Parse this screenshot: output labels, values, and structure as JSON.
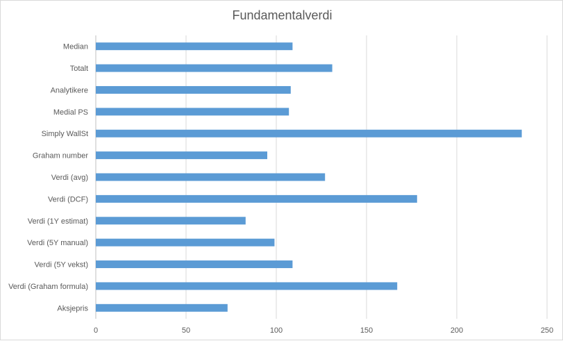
{
  "chart_data": {
    "type": "bar",
    "orientation": "horizontal",
    "title": "Fundamentalverdi",
    "xlabel": "",
    "ylabel": "",
    "categories": [
      "Median",
      "Totalt",
      "Analytikere",
      "Medial PS",
      "Simply WallSt",
      "Graham number",
      "Verdi (avg)",
      "Verdi (DCF)",
      "Verdi (1Y estimat)",
      "Verdi (5Y manual)",
      "Verdi (5Y vekst)",
      "Verdi (Graham formula)",
      "Aksjepris"
    ],
    "values": [
      109,
      131,
      108,
      107,
      236,
      95,
      127,
      178,
      83,
      99,
      109,
      167,
      73
    ],
    "xlim": [
      0,
      250
    ],
    "xticks": [
      "0",
      "50",
      "100",
      "150",
      "200",
      "250"
    ],
    "grid": true,
    "legend": "none",
    "bar_color": "#5b9bd5",
    "grid_color": "#d9d9d9",
    "axis_color": "#bfbfbf"
  }
}
